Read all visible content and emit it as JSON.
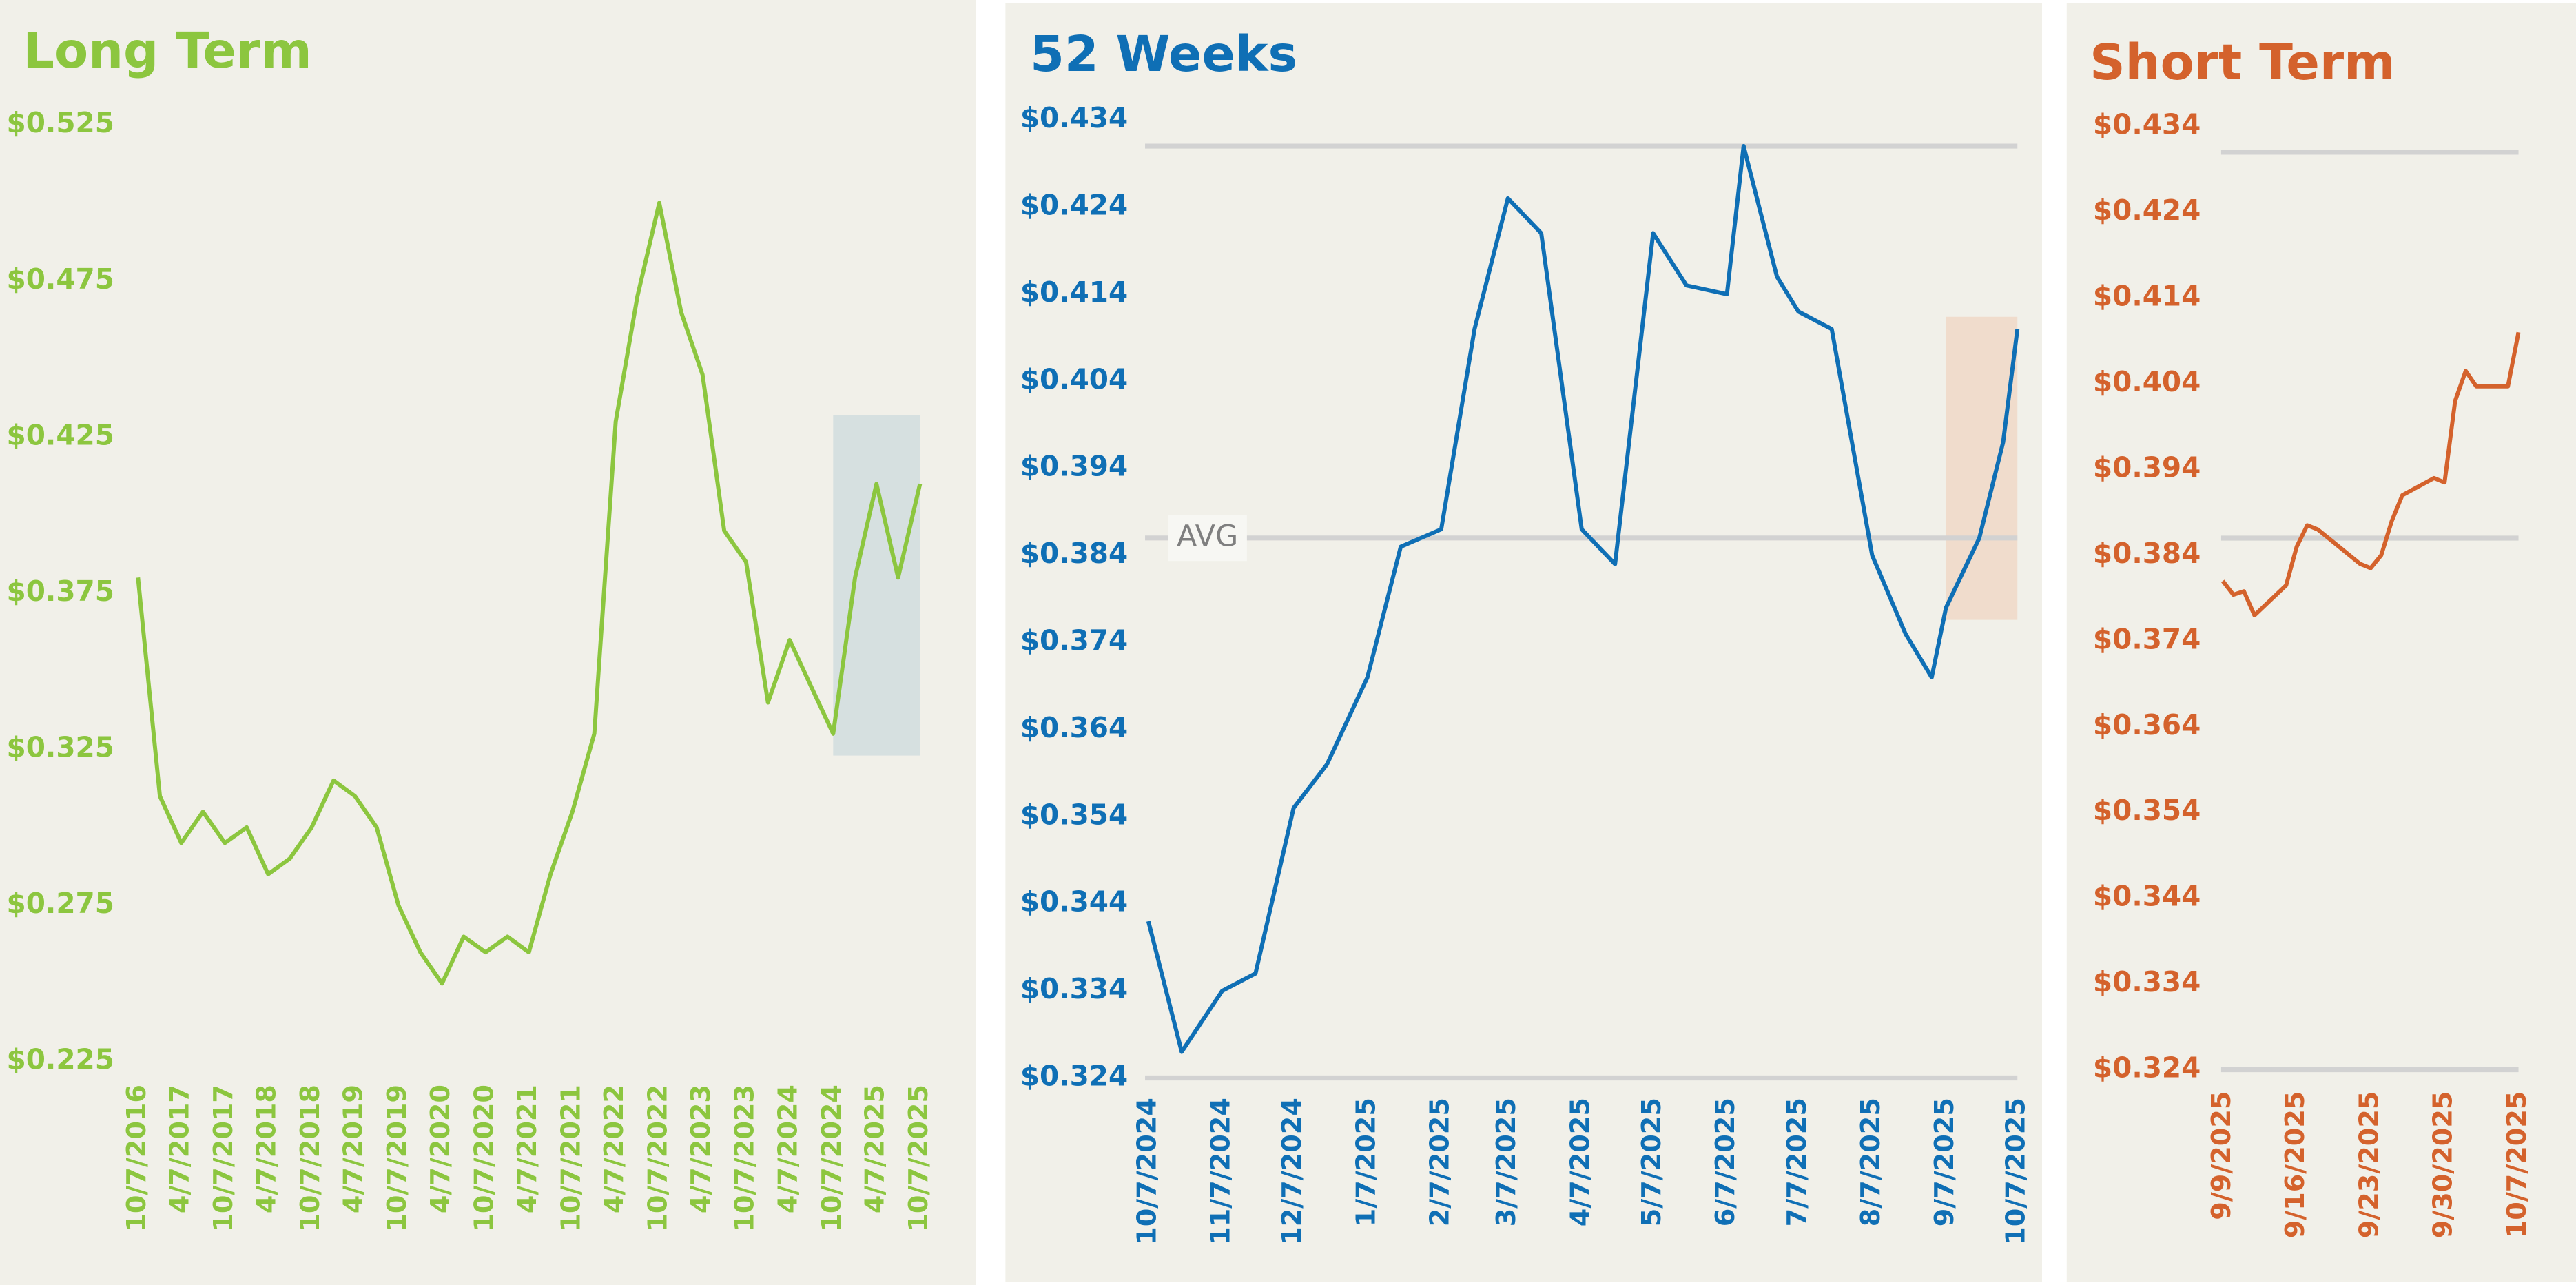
{
  "chart_data": [
    {
      "type": "line",
      "title": "Long Term",
      "color": "#8cc63f",
      "x": [
        "10/7/2016",
        "1/7/2017",
        "4/7/2017",
        "7/7/2017",
        "10/7/2017",
        "1/7/2018",
        "4/7/2018",
        "7/7/2018",
        "10/7/2018",
        "1/7/2019",
        "4/7/2019",
        "7/7/2019",
        "10/7/2019",
        "1/7/2020",
        "4/7/2020",
        "7/7/2020",
        "10/7/2020",
        "1/7/2021",
        "4/7/2021",
        "7/7/2021",
        "10/7/2021",
        "1/7/2022",
        "4/7/2022",
        "7/7/2022",
        "10/7/2022",
        "1/7/2023",
        "4/7/2023",
        "7/7/2023",
        "10/7/2023",
        "1/7/2024",
        "4/7/2024",
        "7/7/2024",
        "10/7/2024",
        "1/7/2025",
        "4/7/2025",
        "7/7/2025",
        "10/7/2025"
      ],
      "values": [
        0.38,
        0.31,
        0.295,
        0.305,
        0.295,
        0.3,
        0.285,
        0.29,
        0.3,
        0.315,
        0.31,
        0.3,
        0.275,
        0.26,
        0.25,
        0.265,
        0.26,
        0.265,
        0.26,
        0.285,
        0.305,
        0.33,
        0.43,
        0.47,
        0.5,
        0.465,
        0.445,
        0.395,
        0.385,
        0.34,
        0.36,
        0.345,
        0.33,
        0.38,
        0.41,
        0.38,
        0.41
      ],
      "xlim": [
        "10/7/2016",
        "10/7/2025"
      ],
      "xticks": [
        "10/7/2016",
        "4/7/2017",
        "10/7/2017",
        "4/7/2018",
        "10/7/2018",
        "4/7/2019",
        "10/7/2019",
        "4/7/2020",
        "10/7/2020",
        "4/7/2021",
        "10/7/2021",
        "4/7/2022",
        "10/7/2022",
        "4/7/2023",
        "10/7/2023",
        "4/7/2024",
        "10/7/2024",
        "4/7/2025",
        "10/7/2025"
      ],
      "ylim": [
        0.225,
        0.525
      ],
      "yticks": [
        {
          "value": 0.225,
          "label": "$0.225"
        },
        {
          "value": 0.275,
          "label": "$0.275"
        },
        {
          "value": 0.325,
          "label": "$0.325"
        },
        {
          "value": 0.375,
          "label": "$0.375"
        },
        {
          "value": 0.425,
          "label": "$0.425"
        },
        {
          "value": 0.475,
          "label": "$0.475"
        },
        {
          "value": 0.525,
          "label": "$0.525"
        }
      ],
      "highlight": {
        "x": [
          "10/7/2024",
          "10/7/2025"
        ],
        "y": [
          0.323,
          0.432
        ],
        "color": "#d6e0e0"
      }
    },
    {
      "type": "line",
      "title": "52 Weeks",
      "color": "#0f6fb5",
      "x": [
        "10/7/2024",
        "10/21/2024",
        "11/7/2024",
        "11/21/2024",
        "12/7/2024",
        "12/21/2024",
        "1/7/2025",
        "1/21/2025",
        "2/7/2025",
        "2/21/2025",
        "3/7/2025",
        "3/21/2025",
        "4/7/2025",
        "4/21/2025",
        "5/7/2025",
        "5/21/2025",
        "6/7/2025",
        "6/14/2025",
        "6/28/2025",
        "7/7/2025",
        "7/21/2025",
        "8/7/2025",
        "8/21/2025",
        "9/1/2025",
        "9/7/2025",
        "9/21/2025",
        "10/1/2025",
        "10/7/2025"
      ],
      "values": [
        0.342,
        0.327,
        0.334,
        0.336,
        0.355,
        0.36,
        0.37,
        0.385,
        0.387,
        0.41,
        0.425,
        0.421,
        0.387,
        0.383,
        0.421,
        0.415,
        0.414,
        0.431,
        0.416,
        0.412,
        0.41,
        0.384,
        0.375,
        0.37,
        0.378,
        0.386,
        0.397,
        0.41
      ],
      "xlim": [
        "10/7/2024",
        "10/7/2025"
      ],
      "xticks": [
        "10/7/2024",
        "11/7/2024",
        "12/7/2024",
        "1/7/2025",
        "2/7/2025",
        "3/7/2025",
        "4/7/2025",
        "5/7/2025",
        "6/7/2025",
        "7/7/2025",
        "8/7/2025",
        "9/7/2025",
        "10/7/2025"
      ],
      "ylim": [
        0.324,
        0.434
      ],
      "yticks": [
        {
          "value": 0.324,
          "label": "$0.324"
        },
        {
          "value": 0.334,
          "label": "$0.334"
        },
        {
          "value": 0.344,
          "label": "$0.344"
        },
        {
          "value": 0.354,
          "label": "$0.354"
        },
        {
          "value": 0.364,
          "label": "$0.364"
        },
        {
          "value": 0.374,
          "label": "$0.374"
        },
        {
          "value": 0.384,
          "label": "$0.384"
        },
        {
          "value": 0.394,
          "label": "$0.394"
        },
        {
          "value": 0.404,
          "label": "$0.404"
        },
        {
          "value": 0.414,
          "label": "$0.414"
        },
        {
          "value": 0.424,
          "label": "$0.424"
        },
        {
          "value": 0.434,
          "label": "$0.434"
        }
      ],
      "ref_lines": [
        {
          "value": 0.431
        },
        {
          "value": 0.386,
          "label": "AVG"
        },
        {
          "value": 0.324
        }
      ],
      "highlight": {
        "x": [
          "9/7/2025",
          "10/7/2025"
        ],
        "y": [
          0.3766,
          0.4114
        ],
        "color": "#f0dccc"
      }
    },
    {
      "type": "line",
      "title": "Short Term",
      "color": "#d4622c",
      "x": [
        "9/9/2025",
        "9/10/2025",
        "9/11/2025",
        "9/12/2025",
        "9/15/2025",
        "9/16/2025",
        "9/17/2025",
        "9/18/2025",
        "9/19/2025",
        "9/22/2025",
        "9/23/2025",
        "9/24/2025",
        "9/25/2025",
        "9/26/2025",
        "9/29/2025",
        "9/30/2025",
        "10/1/2025",
        "10/2/2025",
        "10/3/2025",
        "10/6/2025",
        "10/7/2025"
      ],
      "values": [
        0.381,
        0.3794,
        0.3798,
        0.377,
        0.3805,
        0.385,
        0.3875,
        0.387,
        0.386,
        0.383,
        0.3825,
        0.384,
        0.388,
        0.391,
        0.393,
        0.3925,
        0.402,
        0.4055,
        0.4037,
        0.4037,
        0.41
      ],
      "xlim": [
        "9/9/2025",
        "10/7/2025"
      ],
      "xticks": [
        "9/9/2025",
        "9/16/2025",
        "9/23/2025",
        "9/30/2025",
        "10/7/2025"
      ],
      "ylim": [
        0.324,
        0.434
      ],
      "yticks": [
        {
          "value": 0.324,
          "label": "$0.324"
        },
        {
          "value": 0.334,
          "label": "$0.334"
        },
        {
          "value": 0.344,
          "label": "$0.344"
        },
        {
          "value": 0.354,
          "label": "$0.354"
        },
        {
          "value": 0.364,
          "label": "$0.364"
        },
        {
          "value": 0.374,
          "label": "$0.374"
        },
        {
          "value": 0.384,
          "label": "$0.384"
        },
        {
          "value": 0.394,
          "label": "$0.394"
        },
        {
          "value": 0.404,
          "label": "$0.404"
        },
        {
          "value": 0.414,
          "label": "$0.414"
        },
        {
          "value": 0.424,
          "label": "$0.424"
        },
        {
          "value": 0.434,
          "label": "$0.434"
        }
      ],
      "ref_lines": [
        {
          "value": 0.431
        },
        {
          "value": 0.386
        },
        {
          "value": 0.324
        }
      ]
    }
  ]
}
